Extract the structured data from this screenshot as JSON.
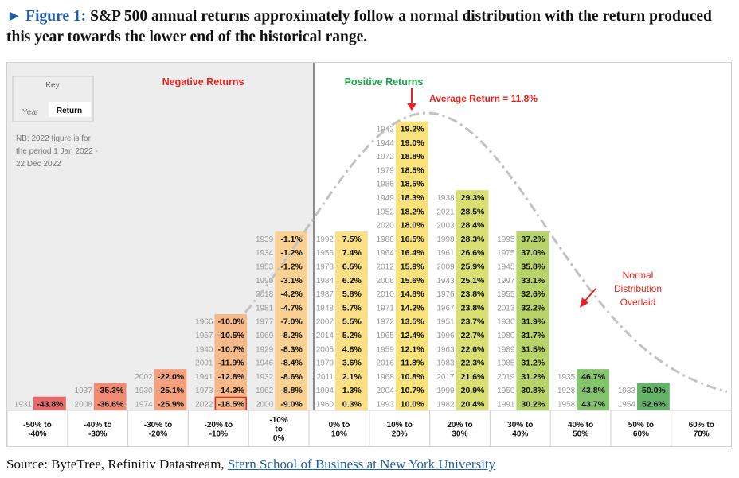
{
  "title": {
    "figure_label": "► Figure 1:",
    "text": "S&P 500 annual returns approximately follow a normal distribution with the return produced this year towards the lower end of the historical range."
  },
  "source": {
    "prefix": "Source: ByteTree, Refinitiv Datastream, ",
    "link_text": "Stern School of Business at New York University"
  },
  "key": {
    "title": "Key",
    "year_label": "Year",
    "return_label": "Return"
  },
  "note": [
    "NB: 2022 figure is for",
    "the period 1 Jan 2022 -",
    "22 Dec 2022"
  ],
  "labels": {
    "negative": "Negative Returns",
    "positive": "Positive Returns",
    "average": "Average Return = 11.8%",
    "normal": [
      "Normal",
      "Distribution",
      "Overlaid"
    ]
  },
  "colors": {
    "negative_label": "#e8231f",
    "positive_label": "#1ea44b",
    "arrow": "#e8231f",
    "highlight_border": "#e8231f",
    "highlight_text": "#e8231f",
    "negative_panel": "#ededed",
    "curve": "#c2c2c2"
  },
  "chart_data": {
    "type": "table",
    "average_return": "11.8%",
    "highlight": {
      "year": "2022",
      "return": "-18.5%"
    },
    "bins": [
      {
        "label": [
          "-50% to",
          "-40%"
        ],
        "color": "#e86b6b",
        "entries": [
          [
            "1931",
            "-43.8%"
          ]
        ]
      },
      {
        "label": [
          "-40% to",
          "-30%"
        ],
        "color": "#f08a72",
        "entries": [
          [
            "2008",
            "-36.6%"
          ],
          [
            "1937",
            "-35.3%"
          ]
        ]
      },
      {
        "label": [
          "-30% to",
          "-20%"
        ],
        "color": "#f4a07c",
        "entries": [
          [
            "1974",
            "-25.9%"
          ],
          [
            "1930",
            "-25.1%"
          ],
          [
            "2002",
            "-22.0%"
          ]
        ]
      },
      {
        "label": [
          "-20% to",
          "-10%"
        ],
        "color": "#f6b98a",
        "entries": [
          [
            "2022",
            "-18.5%"
          ],
          [
            "1973",
            "-14.3%"
          ],
          [
            "1941",
            "-12.8%"
          ],
          [
            "2001",
            "-11.9%"
          ],
          [
            "1940",
            "-10.7%"
          ],
          [
            "1957",
            "-10.5%"
          ],
          [
            "1966",
            "-10.0%"
          ]
        ]
      },
      {
        "label": [
          "-10%",
          "to",
          "0%"
        ],
        "color": "#f9d293",
        "entries": [
          [
            "2000",
            "-9.0%"
          ],
          [
            "1962",
            "-8.8%"
          ],
          [
            "1932",
            "-8.6%"
          ],
          [
            "1946",
            "-8.4%"
          ],
          [
            "1929",
            "-8.3%"
          ],
          [
            "1969",
            "-8.2%"
          ],
          [
            "1977",
            "-7.0%"
          ],
          [
            "1981",
            "-4.7%"
          ],
          [
            "2018",
            "-4.2%"
          ],
          [
            "1990",
            "-3.1%"
          ],
          [
            "1953",
            "-1.2%"
          ],
          [
            "1934",
            "-1.2%"
          ],
          [
            "1939",
            "-1.1%"
          ]
        ]
      },
      {
        "label": [
          "0% to",
          "10%"
        ],
        "color": "#fbe088",
        "entries": [
          [
            "1960",
            "0.3%"
          ],
          [
            "1994",
            "1.3%"
          ],
          [
            "2011",
            "2.1%"
          ],
          [
            "1970",
            "3.6%"
          ],
          [
            "2005",
            "4.8%"
          ],
          [
            "2014",
            "5.2%"
          ],
          [
            "2007",
            "5.5%"
          ],
          [
            "1948",
            "5.7%"
          ],
          [
            "1987",
            "5.8%"
          ],
          [
            "1984",
            "6.2%"
          ],
          [
            "1978",
            "6.5%"
          ],
          [
            "1956",
            "7.4%"
          ],
          [
            "1992",
            "7.5%"
          ]
        ]
      },
      {
        "label": [
          "10% to",
          "20%"
        ],
        "color": "#f7e27c",
        "entries": [
          [
            "1993",
            "10.0%"
          ],
          [
            "2004",
            "10.7%"
          ],
          [
            "1968",
            "10.8%"
          ],
          [
            "2016",
            "11.8%"
          ],
          [
            "1959",
            "12.1%"
          ],
          [
            "1965",
            "12.4%"
          ],
          [
            "1972",
            "13.5%"
          ],
          [
            "1971",
            "14.2%"
          ],
          [
            "2010",
            "14.8%"
          ],
          [
            "2006",
            "15.6%"
          ],
          [
            "2012",
            "15.9%"
          ],
          [
            "1964",
            "16.4%"
          ],
          [
            "1988",
            "16.5%"
          ],
          [
            "2020",
            "18.0%"
          ],
          [
            "1952",
            "18.2%"
          ],
          [
            "1949",
            "18.3%"
          ],
          [
            "1986",
            "18.5%"
          ],
          [
            "1979",
            "18.5%"
          ],
          [
            "1972",
            "18.8%"
          ],
          [
            "1944",
            "19.0%"
          ],
          [
            "1942",
            "19.2%"
          ]
        ]
      },
      {
        "label": [
          "20% to",
          "30%"
        ],
        "color": "#d9df72",
        "entries": [
          [
            "1982",
            "20.4%"
          ],
          [
            "1999",
            "20.9%"
          ],
          [
            "2017",
            "21.6%"
          ],
          [
            "1983",
            "22.3%"
          ],
          [
            "1963",
            "22.6%"
          ],
          [
            "1996",
            "22.7%"
          ],
          [
            "1951",
            "23.7%"
          ],
          [
            "1967",
            "23.8%"
          ],
          [
            "1976",
            "23.8%"
          ],
          [
            "1943",
            "25.1%"
          ],
          [
            "2009",
            "25.9%"
          ],
          [
            "1961",
            "26.6%"
          ],
          [
            "1998",
            "28.3%"
          ],
          [
            "2003",
            "28.4%"
          ],
          [
            "2021",
            "28.5%"
          ],
          [
            "1938",
            "29.3%"
          ]
        ]
      },
      {
        "label": [
          "30% to",
          "40%"
        ],
        "color": "#b7d46b",
        "entries": [
          [
            "1991",
            "30.2%"
          ],
          [
            "1950",
            "30.8%"
          ],
          [
            "2019",
            "31.2%"
          ],
          [
            "1985",
            "31.2%"
          ],
          [
            "1989",
            "31.5%"
          ],
          [
            "1980",
            "31.7%"
          ],
          [
            "1936",
            "31.9%"
          ],
          [
            "2013",
            "32.2%"
          ],
          [
            "1955",
            "32.6%"
          ],
          [
            "1997",
            "33.1%"
          ],
          [
            "1945",
            "35.8%"
          ],
          [
            "1975",
            "37.0%"
          ],
          [
            "1995",
            "37.2%"
          ]
        ]
      },
      {
        "label": [
          "40% to",
          "50%"
        ],
        "color": "#84c46c",
        "entries": [
          [
            "1958",
            "43.7%"
          ],
          [
            "1928",
            "43.8%"
          ],
          [
            "1935",
            "46.7%"
          ]
        ]
      },
      {
        "label": [
          "50% to",
          "60%"
        ],
        "color": "#63b468",
        "entries": [
          [
            "1954",
            "52.6%"
          ],
          [
            "1933",
            "50.0%"
          ]
        ]
      },
      {
        "label": [
          "60% to",
          "70%"
        ],
        "color": "#4ea35f",
        "entries": []
      }
    ]
  }
}
